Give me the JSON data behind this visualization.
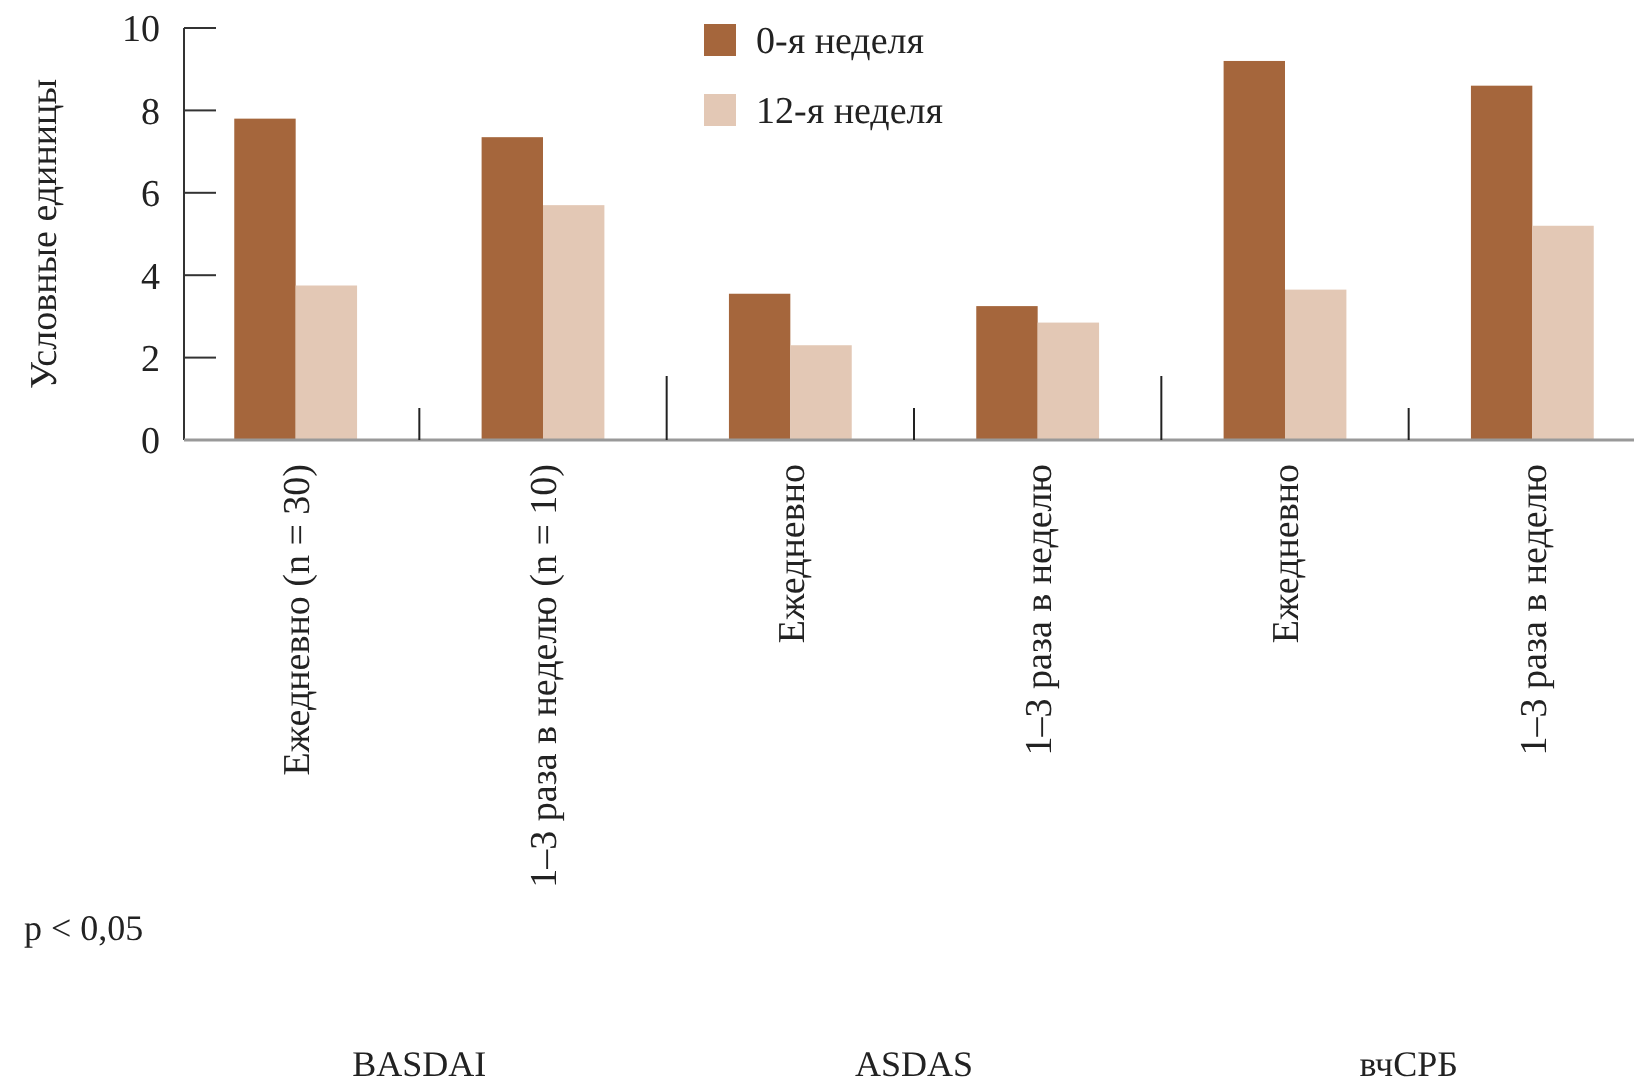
{
  "chart_data": {
    "type": "bar",
    "ylabel": "Условные единицы",
    "categories": [
      "Ежедневно (n = 30)",
      "1–3 раза в неделю (n = 10)",
      "Ежедневно",
      "1–3 раза в неделю",
      "Ежедневно",
      "1–3 раза в неделю"
    ],
    "series": [
      {
        "name": "0-я неделя",
        "color": "#a5663c",
        "values": [
          7.8,
          7.35,
          3.55,
          3.25,
          9.2,
          8.6
        ]
      },
      {
        "name": "12-я неделя",
        "color": "#e3c8b5",
        "values": [
          3.75,
          5.7,
          2.3,
          2.85,
          3.65,
          5.2
        ]
      }
    ],
    "ylim": [
      0,
      10
    ],
    "yticks": [
      0,
      2,
      4,
      6,
      8,
      10
    ],
    "legend": "top",
    "grid": false,
    "annotations": [
      "BASDAI",
      "ASDAS",
      "вчСРБ",
      "p < 0,05"
    ]
  }
}
